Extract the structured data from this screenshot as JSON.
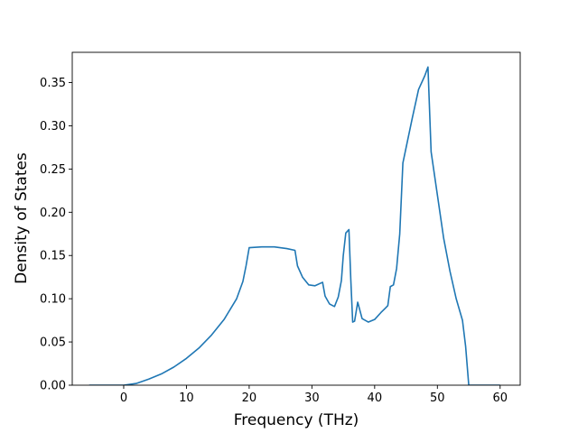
{
  "chart_data": {
    "type": "line",
    "title": "",
    "xlabel": "Frequency (THz)",
    "ylabel": "Density of States",
    "xlim": [
      -8.2,
      63.2
    ],
    "ylim": [
      0,
      0.385
    ],
    "xticks": [
      0,
      10,
      20,
      30,
      40,
      50,
      60
    ],
    "xtick_labels": [
      "0",
      "10",
      "20",
      "30",
      "40",
      "50",
      "60"
    ],
    "yticks": [
      0.0,
      0.05,
      0.1,
      0.15,
      0.2,
      0.25,
      0.3,
      0.35
    ],
    "ytick_labels": [
      "0.00",
      "0.05",
      "0.10",
      "0.15",
      "0.20",
      "0.25",
      "0.30",
      "0.35"
    ],
    "grid": false,
    "legend": "none",
    "colors": {
      "series": "#1f77b4",
      "axes": "#000000",
      "background": "#ffffff"
    },
    "series": [
      {
        "x": [
          -5.5,
          0,
          2,
          4,
          6,
          8,
          10,
          12,
          14,
          16,
          18,
          19,
          19.5,
          20,
          22,
          24,
          26,
          27.3,
          27.7,
          28.5,
          29.5,
          30.5,
          31.7,
          32.1,
          32.8,
          33.6,
          34.2,
          34.7,
          35.0,
          35.4,
          35.9,
          36.2,
          36.5,
          36.8,
          37.3,
          38.0,
          39.0,
          40.0,
          41.0,
          41.7,
          42.1,
          42.5,
          43.0,
          43.5,
          44.0,
          44.5,
          46.0,
          47.0,
          48.0,
          48.5,
          49.0,
          50.0,
          51.0,
          52.0,
          53.0,
          54.0,
          54.5,
          55.0,
          57.0,
          60.0
        ],
        "y": [
          0.0,
          0.0,
          0.002,
          0.007,
          0.013,
          0.021,
          0.031,
          0.043,
          0.058,
          0.076,
          0.1,
          0.12,
          0.138,
          0.159,
          0.16,
          0.16,
          0.158,
          0.156,
          0.138,
          0.125,
          0.116,
          0.115,
          0.119,
          0.103,
          0.094,
          0.091,
          0.102,
          0.121,
          0.15,
          0.176,
          0.18,
          0.122,
          0.073,
          0.074,
          0.096,
          0.077,
          0.073,
          0.076,
          0.084,
          0.089,
          0.092,
          0.114,
          0.116,
          0.135,
          0.175,
          0.257,
          0.309,
          0.342,
          0.358,
          0.368,
          0.27,
          0.22,
          0.17,
          0.132,
          0.1,
          0.075,
          0.045,
          0.0,
          0.0,
          0.0
        ]
      }
    ]
  }
}
